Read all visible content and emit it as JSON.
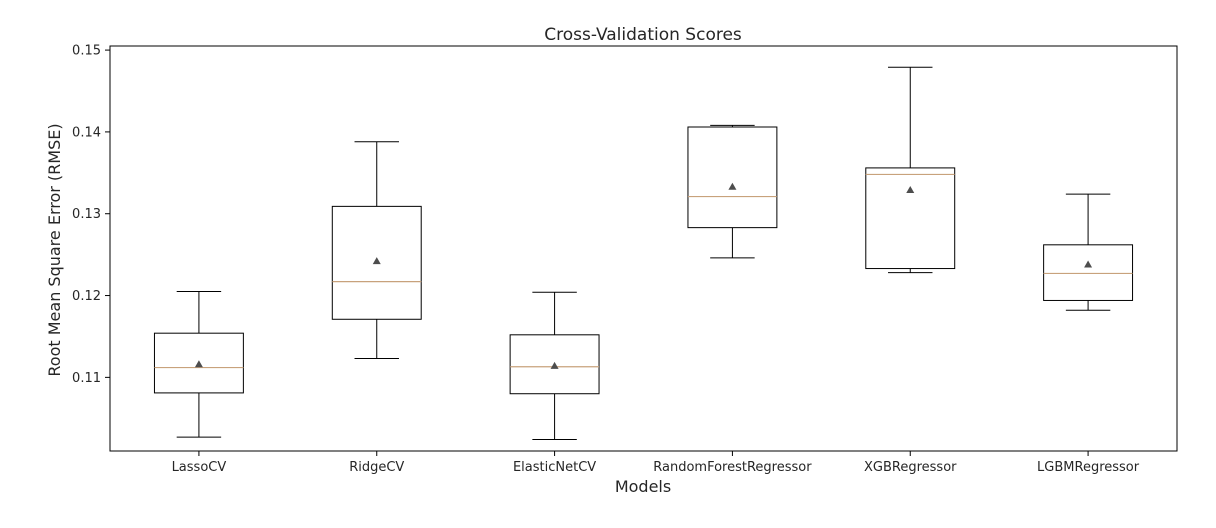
{
  "chart_data": {
    "type": "box",
    "title": "Cross-Validation Scores",
    "xlabel": "Models",
    "ylabel": "Root Mean Square Error (RMSE)",
    "ylim": [
      0.101,
      0.1505
    ],
    "yticks": [
      "0.11",
      "0.12",
      "0.13",
      "0.14",
      "0.15"
    ],
    "ytick_values": [
      0.11,
      0.12,
      0.13,
      0.14,
      0.15
    ],
    "categories": [
      "LassoCV",
      "RidgeCV",
      "ElasticNetCV",
      "RandomForestRegressor",
      "XGBRegressor",
      "LGBMRegressor"
    ],
    "boxes": [
      {
        "whislo": 0.1027,
        "q1": 0.1081,
        "med": 0.1112,
        "q3": 0.1154,
        "whishi": 0.1205,
        "mean": 0.1116
      },
      {
        "whislo": 0.1123,
        "q1": 0.1171,
        "med": 0.1217,
        "q3": 0.1309,
        "whishi": 0.1388,
        "mean": 0.1242
      },
      {
        "whislo": 0.1024,
        "q1": 0.108,
        "med": 0.1113,
        "q3": 0.1152,
        "whishi": 0.1204,
        "mean": 0.1114
      },
      {
        "whislo": 0.1246,
        "q1": 0.1283,
        "med": 0.1321,
        "q3": 0.1406,
        "whishi": 0.1408,
        "mean": 0.1333
      },
      {
        "whislo": 0.1228,
        "q1": 0.1233,
        "med": 0.1348,
        "q3": 0.1356,
        "whishi": 0.1479,
        "mean": 0.1329
      },
      {
        "whislo": 0.1182,
        "q1": 0.1194,
        "med": 0.1227,
        "q3": 0.1262,
        "whishi": 0.1324,
        "mean": 0.1238
      }
    ],
    "show_means": true,
    "grid": false,
    "colors": {
      "box": "#000000",
      "median": "#c8a27c",
      "mean_marker": "#4d4d4d",
      "frame": "#000000"
    }
  }
}
